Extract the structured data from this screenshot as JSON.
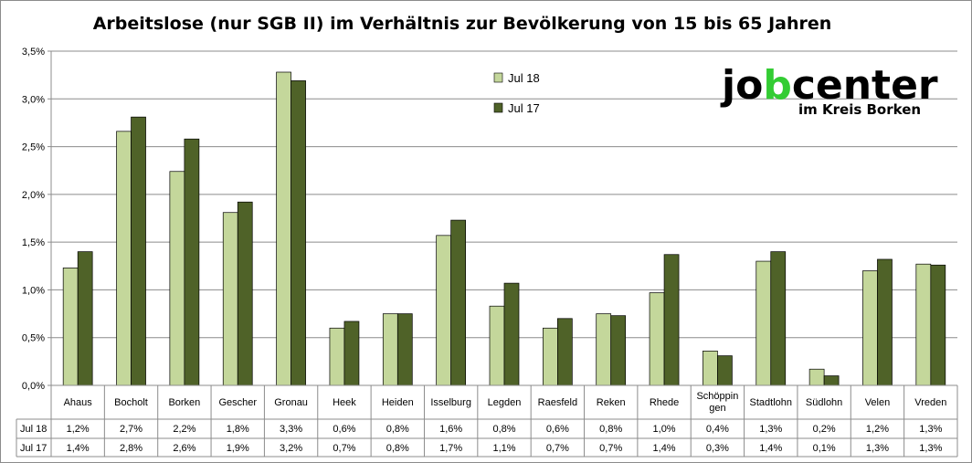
{
  "chart_data": {
    "type": "bar",
    "title": "Arbeitslose (nur SGB II) im Verhältnis zur Bevölkerung von 15 bis 65 Jahren",
    "categories": [
      "Ahaus",
      "Bocholt",
      "Borken",
      "Gescher",
      "Gronau",
      "Heek",
      "Heiden",
      "Isselburg",
      "Legden",
      "Raesfeld",
      "Reken",
      "Rhede",
      "Schöppingen",
      "Stadtlohn",
      "Südlohn",
      "Velen",
      "Vreden"
    ],
    "category_labels": [
      [
        "Ahaus"
      ],
      [
        "Bocholt"
      ],
      [
        "Borken"
      ],
      [
        "Gescher"
      ],
      [
        "Gronau"
      ],
      [
        "Heek"
      ],
      [
        "Heiden"
      ],
      [
        "Isselburg"
      ],
      [
        "Legden"
      ],
      [
        "Raesfeld"
      ],
      [
        "Reken"
      ],
      [
        "Rhede"
      ],
      [
        "Schöppin",
        "gen"
      ],
      [
        "Stadtlohn"
      ],
      [
        "Südlohn"
      ],
      [
        "Velen"
      ],
      [
        "Vreden"
      ]
    ],
    "series": [
      {
        "name": "Jul 18",
        "color": "#c4d79b",
        "values": [
          1.23,
          2.66,
          2.24,
          1.81,
          3.28,
          0.6,
          0.75,
          1.57,
          0.83,
          0.6,
          0.75,
          0.97,
          0.36,
          1.3,
          0.17,
          1.2,
          1.27
        ],
        "table_labels": [
          "1,2%",
          "2,7%",
          "2,2%",
          "1,8%",
          "3,3%",
          "0,6%",
          "0,8%",
          "1,6%",
          "0,8%",
          "0,6%",
          "0,8%",
          "1,0%",
          "0,4%",
          "1,3%",
          "0,2%",
          "1,2%",
          "1,3%"
        ]
      },
      {
        "name": "Jul 17",
        "color": "#4f6228",
        "values": [
          1.4,
          2.81,
          2.58,
          1.92,
          3.19,
          0.67,
          0.75,
          1.73,
          1.07,
          0.7,
          0.73,
          1.37,
          0.31,
          1.4,
          0.1,
          1.32,
          1.26
        ],
        "table_labels": [
          "1,4%",
          "2,8%",
          "2,6%",
          "1,9%",
          "3,2%",
          "0,7%",
          "0,8%",
          "1,7%",
          "1,1%",
          "0,7%",
          "0,7%",
          "1,4%",
          "0,3%",
          "1,4%",
          "0,1%",
          "1,3%",
          "1,3%"
        ]
      }
    ],
    "ylim": [
      0,
      3.5
    ],
    "yticks": [
      0,
      0.5,
      1.0,
      1.5,
      2.0,
      2.5,
      3.0,
      3.5
    ],
    "ytick_labels": [
      "0,0%",
      "0,5%",
      "1,0%",
      "1,5%",
      "2,0%",
      "2,5%",
      "3,0%",
      "3,5%"
    ],
    "grid": true,
    "legend_position": "top-center",
    "data_table": true
  },
  "logo": {
    "text_main": "jobcenter",
    "text_sub": "im Kreis Borken",
    "accent_color": "#33cc33"
  }
}
